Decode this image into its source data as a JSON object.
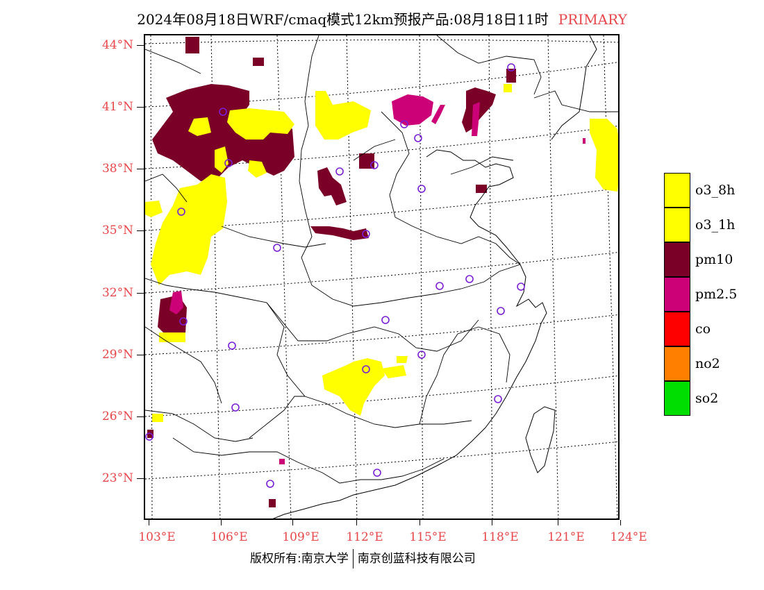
{
  "title": {
    "text": "2024年08月18日WRF/cmaq模式12km预报产品:08月18日11时",
    "tag": "PRIMARY",
    "tag_color": "#e8464a"
  },
  "axes": {
    "label_color": "#e8464a",
    "latitudes": [
      "44°N",
      "41°N",
      "38°N",
      "35°N",
      "32°N",
      "29°N",
      "26°N",
      "23°N"
    ],
    "longitudes": [
      "103°E",
      "106°E",
      "109°E",
      "112°E",
      "115°E",
      "118°E",
      "121°E",
      "124°E"
    ]
  },
  "legend": [
    {
      "label": "o3_8h",
      "color": "#ffff00"
    },
    {
      "label": "o3_1h",
      "color": "#ffff00"
    },
    {
      "label": "pm10",
      "color": "#7a0028"
    },
    {
      "label": "pm2.5",
      "color": "#cc0077"
    },
    {
      "label": "co",
      "color": "#ff0000"
    },
    {
      "label": "no2",
      "color": "#ff7f00"
    },
    {
      "label": "so2",
      "color": "#00dd00"
    }
  ],
  "footer": {
    "left": "版权所有:南京大学",
    "right": "南京创蓝科技有限公司"
  },
  "colors": {
    "o3": "#ffff00",
    "pm10": "#7a0028",
    "pm25": "#cc0077",
    "station_marker": "#7a1fd6",
    "boundary": "#000000"
  }
}
